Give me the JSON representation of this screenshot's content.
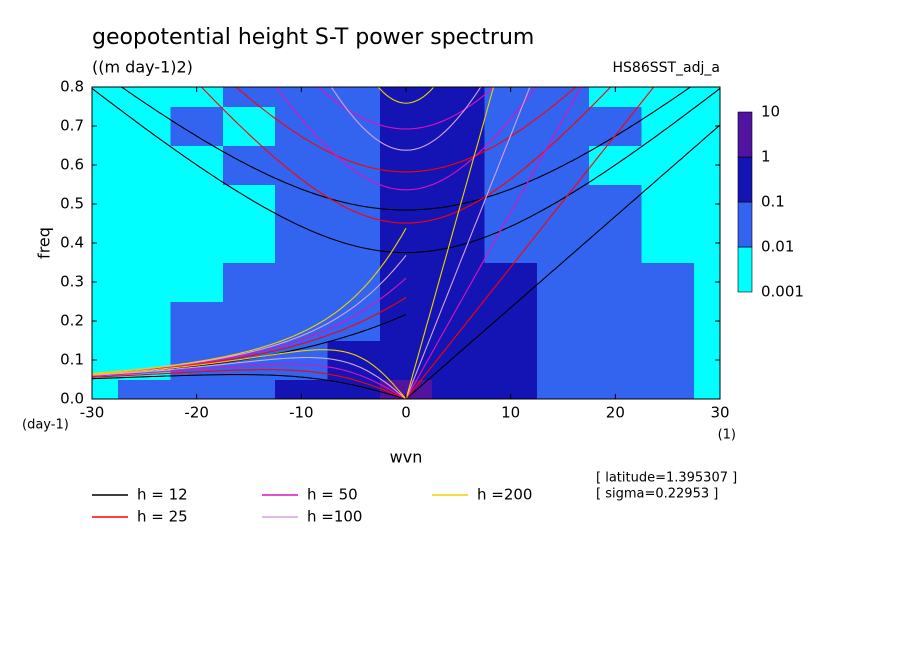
{
  "chart_data": {
    "type": "contour",
    "title": "geopotential height S-T power spectrum",
    "subtitle": "((m day-1)2)",
    "source_label": "HS86SST_adj_a",
    "x_label": "wvn",
    "y_label": "freq",
    "x_unit": "(1)",
    "y_unit": "(day-1)",
    "xlim": [
      -30,
      30
    ],
    "xticks": [
      -30,
      -20,
      -10,
      0,
      10,
      20,
      30
    ],
    "ylim": [
      0,
      0.8
    ],
    "yticks": [
      {
        "value": 0,
        "label": "0.0"
      },
      0.1,
      0.2,
      0.3,
      0.4,
      0.5,
      0.6,
      0.7,
      0.8
    ],
    "x": [
      -30,
      -25,
      -20,
      -15,
      -10,
      -5,
      0,
      5,
      10,
      15,
      20,
      25,
      30
    ],
    "y": [
      0,
      0.1,
      0.2,
      0.3,
      0.4,
      0.5,
      0.6,
      0.7,
      0.8
    ],
    "z": [
      [
        0.005,
        0.05,
        0.05,
        0.05,
        0.5,
        0.5,
        5,
        0.5,
        0.5,
        0.05,
        0.05,
        0.05,
        0.005
      ],
      [
        0.005,
        0.005,
        0.05,
        0.05,
        0.05,
        0.5,
        0.5,
        0.5,
        0.5,
        0.05,
        0.05,
        0.05,
        0.005
      ],
      [
        0.005,
        0.005,
        0.05,
        0.05,
        0.05,
        0.05,
        0.5,
        0.5,
        0.5,
        0.05,
        0.05,
        0.05,
        0.005
      ],
      [
        0.005,
        0.005,
        0.005,
        0.05,
        0.05,
        0.05,
        0.5,
        0.5,
        0.5,
        0.05,
        0.05,
        0.05,
        0.005
      ],
      [
        0.005,
        0.005,
        0.005,
        0.005,
        0.05,
        0.05,
        0.5,
        0.5,
        0.05,
        0.05,
        0.05,
        0.005,
        0.005
      ],
      [
        0.005,
        0.005,
        0.005,
        0.005,
        0.05,
        0.05,
        0.5,
        0.5,
        0.05,
        0.05,
        0.05,
        0.005,
        0.005
      ],
      [
        0.005,
        0.005,
        0.005,
        0.05,
        0.05,
        0.05,
        0.5,
        0.5,
        0.05,
        0.05,
        0.005,
        0.005,
        0.005
      ],
      [
        0.005,
        0.005,
        0.05,
        0.005,
        0.05,
        0.05,
        0.5,
        0.5,
        0.05,
        0.05,
        0.05,
        0.005,
        0.005
      ],
      [
        0.005,
        0.005,
        0.005,
        0.05,
        0.05,
        0.05,
        0.5,
        0.5,
        0.05,
        0.05,
        0.005,
        0.005,
        0.005
      ]
    ],
    "colorbar": {
      "levels": [
        0.001,
        0.01,
        0.1,
        1,
        10
      ],
      "colors": [
        "#00ffff",
        "#3264f0",
        "#1414b4",
        "#5014a0"
      ]
    },
    "dispersion_curves": [
      {
        "name": "h = 12",
        "h": 12,
        "color": "#000000"
      },
      {
        "name": "h = 25",
        "h": 25,
        "color": "#ff0000"
      },
      {
        "name": "h = 50",
        "h": 50,
        "color": "#e010c0"
      },
      {
        "name": "h =100",
        "h": 100,
        "color": "#d8a0e0"
      },
      {
        "name": "h =200",
        "h": 200,
        "color": "#f0d000"
      }
    ],
    "notes": [
      "[ latitude=1.395307 ]",
      "[ sigma=0.22953 ]"
    ]
  }
}
